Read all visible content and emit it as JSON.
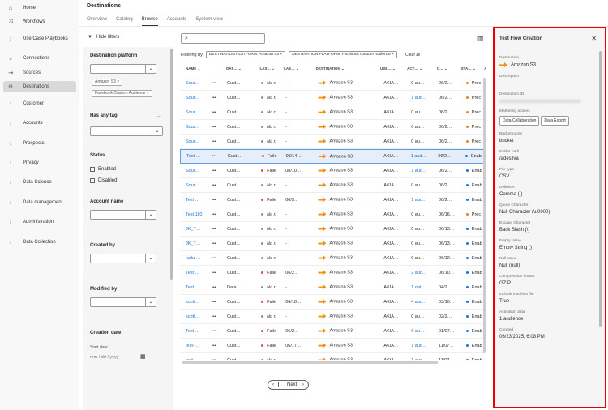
{
  "nav": [
    {
      "label": "Home",
      "icon": "home-icon"
    },
    {
      "label": "Workflows",
      "icon": "workflows-icon"
    },
    {
      "label": "Use Case Playbooks",
      "icon": "chevron-right-icon"
    },
    {
      "label": "Connections",
      "icon": "chevron-down-icon"
    },
    {
      "label": "Sources",
      "icon": "sources-icon"
    },
    {
      "label": "Destinations",
      "icon": "destinations-icon",
      "active": true
    },
    {
      "label": "Customer",
      "icon": "chevron-right-icon"
    },
    {
      "label": "Accounts",
      "icon": "chevron-right-icon"
    },
    {
      "label": "Prospects",
      "icon": "chevron-right-icon"
    },
    {
      "label": "Privacy",
      "icon": "chevron-right-icon"
    },
    {
      "label": "Data Science",
      "icon": "chevron-right-icon"
    },
    {
      "label": "Data management",
      "icon": "chevron-right-icon"
    },
    {
      "label": "Administration",
      "icon": "chevron-right-icon"
    },
    {
      "label": "Data Collection",
      "icon": "chevron-right-icon"
    }
  ],
  "page_title": "Destinations",
  "tabs": [
    "Overview",
    "Catalog",
    "Browse",
    "Accounts",
    "System view"
  ],
  "filters": {
    "hide": "Hide filters",
    "platform": "Destination platform",
    "tags": [
      "Amazon S3",
      "Facebook Custom Audience"
    ],
    "has_tag": "Has any tag",
    "status": "Status",
    "enabled": "Enabled",
    "disabled": "Disabled",
    "account": "Account name",
    "created_by": "Created by",
    "modified_by": "Modified by",
    "creation_date": "Creation date",
    "start_date": "Start date",
    "date_placeholder": "mm / dd / yyyy"
  },
  "filter_bar": {
    "label": "Filtering by",
    "chips": [
      "DESTINATION PLATFORM: Amazon S3",
      "DESTINATION PLATFORM: Facebook Custom Audience"
    ],
    "clear": "Clear all"
  },
  "columns": [
    "NAME",
    "",
    "DAT…",
    "LAS…",
    "LAS…",
    "DESTINATION",
    "USE…",
    "ACT…",
    "↓ C…",
    "STA…",
    "AC"
  ],
  "rows": [
    [
      "Sour…",
      "Cust…",
      "No r.",
      "-",
      "AKIA…",
      "0 au…",
      "06/2…",
      "Proc"
    ],
    [
      "Sour…",
      "Cust…",
      "No r.",
      "-",
      "AKIA…",
      "1 aud…",
      "06/2…",
      "Proc"
    ],
    [
      "Sour…",
      "Cust…",
      "No r.",
      "-",
      "AKIA…",
      "0 au…",
      "06/2…",
      "Proc"
    ],
    [
      "Sour…",
      "Cust…",
      "No r.",
      "-",
      "AKIA…",
      "0 au…",
      "06/2…",
      "Proc"
    ],
    [
      "Sour…",
      "Cust…",
      "No r.",
      "-",
      "AKIA…",
      "0 au…",
      "06/2…",
      "Proc"
    ],
    [
      "Test …",
      "Cust…",
      "Faile",
      "08/14…",
      "AKIA…",
      "1 aud…",
      "06/2…",
      "Enab"
    ],
    [
      "Sour…",
      "Cust…",
      "Faile",
      "08/10…",
      "AKIA…",
      "1 aud…",
      "06/2…",
      "Enab"
    ],
    [
      "Sour…",
      "Cust…",
      "No r.",
      "-",
      "AKIA…",
      "0 au…",
      "06/2…",
      "Enab"
    ],
    [
      "Test …",
      "Cust…",
      "Faile",
      "06/3…",
      "AKIA…",
      "1 aud…",
      "06/2…",
      "Enab"
    ],
    [
      "Test 110",
      "Cust…",
      "No r.",
      "-",
      "AKIA…",
      "0 au…",
      "06/16…",
      "Proc"
    ],
    [
      "JK_T…",
      "Cust…",
      "No r.",
      "-",
      "AKIA…",
      "0 au…",
      "06/13…",
      "Enab"
    ],
    [
      "JK_T…",
      "Cust…",
      "No r.",
      "-",
      "AKIA…",
      "0 au…",
      "06/13…",
      "Enab"
    ],
    [
      "radu-…",
      "Cust…",
      "No r.",
      "-",
      "AKIA…",
      "0 au…",
      "06/12…",
      "Enab"
    ],
    [
      "Test …",
      "Cust…",
      "Faile",
      "06/2…",
      "AKIA…",
      "2 aud…",
      "06/10…",
      "Enab"
    ],
    [
      "Test …",
      "Data…",
      "No r.",
      "-",
      "AKIA…",
      "1 dat…",
      "04/2…",
      "Enab"
    ],
    [
      "scott…",
      "Cust…",
      "Faile",
      "06/18…",
      "AKIA…",
      "4 aud…",
      "03/10…",
      "Enab"
    ],
    [
      "scott…",
      "Cust…",
      "No r.",
      "-",
      "AKIA…",
      "0 au…",
      "02/2…",
      "Enab"
    ],
    [
      "Test …",
      "Cust…",
      "Faile",
      "06/2…",
      "AKIA…",
      "6 au…",
      "01/07…",
      "Enab"
    ],
    [
      "test-…",
      "Cust…",
      "Faile",
      "06/17…",
      "AKIA…",
      "1 aud…",
      "11/07…",
      "Enab"
    ],
    [
      "test-…",
      "Cust…",
      "No r.",
      "-",
      "AKIA…",
      "1 aud…",
      "11/07…",
      "Enab"
    ]
  ],
  "selected_row": 5,
  "destination": "Amazon S3",
  "colors": {
    "failed": "#e34850",
    "none": "#8e8e8e",
    "processing": "#e68619",
    "enabled": "#1473e6",
    "link": "#1a6fd4",
    "highlight": "#e00000"
  },
  "pager": {
    "next": "Next"
  },
  "panel": {
    "title": "Test Flow Creation",
    "destination_label": "Destination",
    "destination": "Amazon S3",
    "description_label": "Description",
    "description": "-",
    "id_label": "Destination ID",
    "marketing_label": "Marketing actions",
    "marketing": [
      "Data Collaboration",
      "Data Export"
    ],
    "fields": [
      [
        "Bucket name",
        "bucket"
      ],
      [
        "Folder path",
        "/adesilva"
      ],
      [
        "File type",
        "CSV"
      ],
      [
        "Delimiter",
        "Comma (,)"
      ],
      [
        "Quote Character",
        "Null Character (\\u0000)"
      ],
      [
        "Escape Character",
        "Back Slash (\\)"
      ],
      [
        "Empty Value",
        "Empty String ()"
      ],
      [
        "Null Value",
        "Null (null)"
      ],
      [
        "Compression format",
        "GZIP"
      ],
      [
        "Include manifest file",
        "True"
      ],
      [
        "Activation data",
        "1 audience"
      ],
      [
        "Created",
        "06/23/2025, 6:08 PM"
      ]
    ]
  }
}
